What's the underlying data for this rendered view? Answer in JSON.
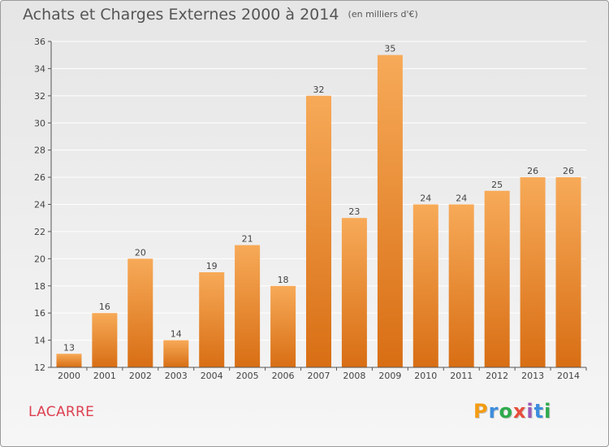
{
  "title": {
    "main": "Achats et Charges Externes 2000 à 2014",
    "unit": "(en milliers d'€)"
  },
  "commune": "LACARRE",
  "logo": {
    "text": "Proxiti",
    "letters": [
      {
        "ch": "P",
        "color": "#f39c12"
      },
      {
        "ch": "r",
        "color": "#3c8dde"
      },
      {
        "ch": "o",
        "color": "#2eaa4c"
      },
      {
        "ch": "x",
        "color": "#e74c3c"
      },
      {
        "ch": "i",
        "color": "#9b59b6"
      },
      {
        "ch": "t",
        "color": "#3c8dde"
      },
      {
        "ch": "i",
        "color": "#2eaa4c"
      }
    ]
  },
  "colors": {
    "bar_top": "#f7aa58",
    "bar_bottom": "#d86e14",
    "grid": "#ffffff",
    "axis": "#555555"
  },
  "chart_data": {
    "type": "bar",
    "title": "Achats et Charges Externes 2000 à 2014",
    "subtitle": "(en milliers d'€)",
    "xlabel": "",
    "ylabel": "",
    "categories": [
      "2000",
      "2001",
      "2002",
      "2003",
      "2004",
      "2005",
      "2006",
      "2007",
      "2008",
      "2009",
      "2010",
      "2011",
      "2012",
      "2013",
      "2014"
    ],
    "values": [
      13,
      16,
      20,
      14,
      19,
      21,
      18,
      32,
      23,
      35,
      24,
      24,
      25,
      26,
      26
    ],
    "ylim": [
      12,
      36
    ],
    "yticks": [
      12,
      14,
      16,
      18,
      20,
      22,
      24,
      26,
      28,
      30,
      32,
      34,
      36
    ],
    "grid": true,
    "data_labels": true
  }
}
